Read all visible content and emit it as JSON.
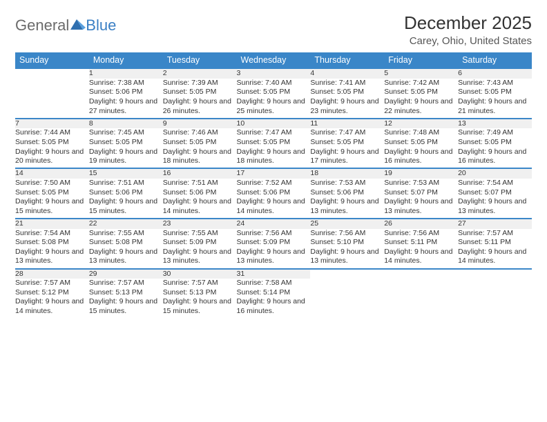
{
  "brand": {
    "part1": "General",
    "part2": "Blue"
  },
  "title": "December 2025",
  "location": "Carey, Ohio, United States",
  "style": {
    "header_bg": "#3a86c8",
    "header_text_color": "#ffffff",
    "daynum_bg": "#f0f0f0",
    "row_divider_color": "#3a86c8",
    "body_font_size_pt": 10.5,
    "header_font_size_pt": 12.5,
    "title_font_size_pt": 26,
    "location_font_size_pt": 15,
    "background": "#ffffff"
  },
  "weekday_headers": [
    "Sunday",
    "Monday",
    "Tuesday",
    "Wednesday",
    "Thursday",
    "Friday",
    "Saturday"
  ],
  "weeks": [
    [
      null,
      {
        "n": "1",
        "sr": "Sunrise: 7:38 AM",
        "ss": "Sunset: 5:06 PM",
        "dl": "Daylight: 9 hours and 27 minutes."
      },
      {
        "n": "2",
        "sr": "Sunrise: 7:39 AM",
        "ss": "Sunset: 5:05 PM",
        "dl": "Daylight: 9 hours and 26 minutes."
      },
      {
        "n": "3",
        "sr": "Sunrise: 7:40 AM",
        "ss": "Sunset: 5:05 PM",
        "dl": "Daylight: 9 hours and 25 minutes."
      },
      {
        "n": "4",
        "sr": "Sunrise: 7:41 AM",
        "ss": "Sunset: 5:05 PM",
        "dl": "Daylight: 9 hours and 23 minutes."
      },
      {
        "n": "5",
        "sr": "Sunrise: 7:42 AM",
        "ss": "Sunset: 5:05 PM",
        "dl": "Daylight: 9 hours and 22 minutes."
      },
      {
        "n": "6",
        "sr": "Sunrise: 7:43 AM",
        "ss": "Sunset: 5:05 PM",
        "dl": "Daylight: 9 hours and 21 minutes."
      }
    ],
    [
      {
        "n": "7",
        "sr": "Sunrise: 7:44 AM",
        "ss": "Sunset: 5:05 PM",
        "dl": "Daylight: 9 hours and 20 minutes."
      },
      {
        "n": "8",
        "sr": "Sunrise: 7:45 AM",
        "ss": "Sunset: 5:05 PM",
        "dl": "Daylight: 9 hours and 19 minutes."
      },
      {
        "n": "9",
        "sr": "Sunrise: 7:46 AM",
        "ss": "Sunset: 5:05 PM",
        "dl": "Daylight: 9 hours and 18 minutes."
      },
      {
        "n": "10",
        "sr": "Sunrise: 7:47 AM",
        "ss": "Sunset: 5:05 PM",
        "dl": "Daylight: 9 hours and 18 minutes."
      },
      {
        "n": "11",
        "sr": "Sunrise: 7:47 AM",
        "ss": "Sunset: 5:05 PM",
        "dl": "Daylight: 9 hours and 17 minutes."
      },
      {
        "n": "12",
        "sr": "Sunrise: 7:48 AM",
        "ss": "Sunset: 5:05 PM",
        "dl": "Daylight: 9 hours and 16 minutes."
      },
      {
        "n": "13",
        "sr": "Sunrise: 7:49 AM",
        "ss": "Sunset: 5:05 PM",
        "dl": "Daylight: 9 hours and 16 minutes."
      }
    ],
    [
      {
        "n": "14",
        "sr": "Sunrise: 7:50 AM",
        "ss": "Sunset: 5:05 PM",
        "dl": "Daylight: 9 hours and 15 minutes."
      },
      {
        "n": "15",
        "sr": "Sunrise: 7:51 AM",
        "ss": "Sunset: 5:06 PM",
        "dl": "Daylight: 9 hours and 15 minutes."
      },
      {
        "n": "16",
        "sr": "Sunrise: 7:51 AM",
        "ss": "Sunset: 5:06 PM",
        "dl": "Daylight: 9 hours and 14 minutes."
      },
      {
        "n": "17",
        "sr": "Sunrise: 7:52 AM",
        "ss": "Sunset: 5:06 PM",
        "dl": "Daylight: 9 hours and 14 minutes."
      },
      {
        "n": "18",
        "sr": "Sunrise: 7:53 AM",
        "ss": "Sunset: 5:06 PM",
        "dl": "Daylight: 9 hours and 13 minutes."
      },
      {
        "n": "19",
        "sr": "Sunrise: 7:53 AM",
        "ss": "Sunset: 5:07 PM",
        "dl": "Daylight: 9 hours and 13 minutes."
      },
      {
        "n": "20",
        "sr": "Sunrise: 7:54 AM",
        "ss": "Sunset: 5:07 PM",
        "dl": "Daylight: 9 hours and 13 minutes."
      }
    ],
    [
      {
        "n": "21",
        "sr": "Sunrise: 7:54 AM",
        "ss": "Sunset: 5:08 PM",
        "dl": "Daylight: 9 hours and 13 minutes."
      },
      {
        "n": "22",
        "sr": "Sunrise: 7:55 AM",
        "ss": "Sunset: 5:08 PM",
        "dl": "Daylight: 9 hours and 13 minutes."
      },
      {
        "n": "23",
        "sr": "Sunrise: 7:55 AM",
        "ss": "Sunset: 5:09 PM",
        "dl": "Daylight: 9 hours and 13 minutes."
      },
      {
        "n": "24",
        "sr": "Sunrise: 7:56 AM",
        "ss": "Sunset: 5:09 PM",
        "dl": "Daylight: 9 hours and 13 minutes."
      },
      {
        "n": "25",
        "sr": "Sunrise: 7:56 AM",
        "ss": "Sunset: 5:10 PM",
        "dl": "Daylight: 9 hours and 13 minutes."
      },
      {
        "n": "26",
        "sr": "Sunrise: 7:56 AM",
        "ss": "Sunset: 5:11 PM",
        "dl": "Daylight: 9 hours and 14 minutes."
      },
      {
        "n": "27",
        "sr": "Sunrise: 7:57 AM",
        "ss": "Sunset: 5:11 PM",
        "dl": "Daylight: 9 hours and 14 minutes."
      }
    ],
    [
      {
        "n": "28",
        "sr": "Sunrise: 7:57 AM",
        "ss": "Sunset: 5:12 PM",
        "dl": "Daylight: 9 hours and 14 minutes."
      },
      {
        "n": "29",
        "sr": "Sunrise: 7:57 AM",
        "ss": "Sunset: 5:13 PM",
        "dl": "Daylight: 9 hours and 15 minutes."
      },
      {
        "n": "30",
        "sr": "Sunrise: 7:57 AM",
        "ss": "Sunset: 5:13 PM",
        "dl": "Daylight: 9 hours and 15 minutes."
      },
      {
        "n": "31",
        "sr": "Sunrise: 7:58 AM",
        "ss": "Sunset: 5:14 PM",
        "dl": "Daylight: 9 hours and 16 minutes."
      },
      null,
      null,
      null
    ]
  ]
}
